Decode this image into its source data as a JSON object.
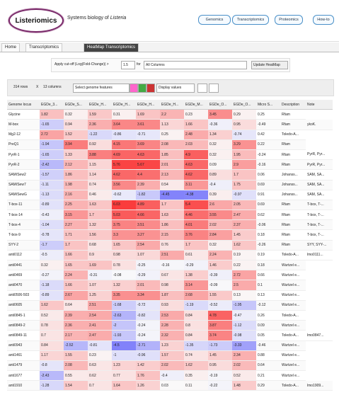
{
  "header": {
    "logo": "Listeriomics",
    "tagline": "Systems biology of",
    "tagline_em": "Listeria",
    "nav": [
      "Genomics",
      "Transcriptomics",
      "Proteomics",
      "How-to"
    ]
  },
  "tabs": [
    "Home",
    "Transcriptomics",
    "HeatMap Transcriptomics"
  ],
  "controls": {
    "cutoff_label": "Apply cut-off |Log(Fold-Change)| >",
    "cutoff": "1.5",
    "for": "for",
    "columns": "All Columns",
    "update": "Update HeatMap"
  },
  "toolbar": {
    "rows": "314 rows",
    "x": "X",
    "cols": "13 columns",
    "select": "Select genome features",
    "display": "Display values"
  },
  "table": {
    "headers": [
      "Genome locus",
      "EGDe_3...",
      "EGDe_S...",
      "EGDe_H...",
      "EGDe_H...",
      "EGDe_H...",
      "EGDe_H...",
      "EGDe_M...",
      "EGDe_O...",
      "EGDe_O...",
      "Micro S...",
      "Description",
      "Note"
    ],
    "rows": [
      [
        "Glycine",
        1.82,
        0.32,
        1.59,
        0.31,
        1.69,
        2.2,
        0.23,
        3.45,
        0.29,
        0.25,
        "Rfam"
      ],
      [
        "M-box",
        -1.65,
        0.94,
        2.36,
        3.64,
        3.61,
        1.13,
        1.66,
        -0.36,
        0.95,
        -0.49,
        "Rfam",
        "ykoK."
      ],
      [
        "Mg2-12",
        2.72,
        1.52,
        -1.22,
        -0.86,
        -0.71,
        0.25,
        2.48,
        1.34,
        -0.74,
        0.42,
        "Toledo-A..."
      ],
      [
        "PreQ1",
        -1.94,
        3.94,
        0.92,
        4.15,
        3.69,
        2.08,
        2.03,
        0.32,
        3.29,
        0.22,
        "Rfam"
      ],
      [
        "PyrR-1",
        -1.65,
        1.33,
        3.88,
        4.69,
        4.63,
        1.85,
        4.9,
        0.32,
        1.95,
        -0.24,
        "Rfam",
        "PyrR, Pyr..."
      ],
      [
        "PyrR-2",
        -2.42,
        2.12,
        1.15,
        5.76,
        5.67,
        2.01,
        4.63,
        0.09,
        2.9,
        -0.16,
        "Rfam",
        "PyrR, Pyr..."
      ],
      [
        "SAM/Sew2",
        -1.57,
        1.86,
        1.14,
        4.62,
        4.4,
        2.13,
        4.62,
        0.89,
        1.7,
        0.06,
        "Johanss...",
        "SAM, SA..."
      ],
      [
        "SAM/Sew7",
        -1.11,
        1.98,
        0.74,
        3.56,
        2.39,
        0.54,
        3.11,
        -0.4,
        1.75,
        0.69,
        "Johanss...",
        "SAM, SA..."
      ],
      [
        "SAM/SewG",
        -1.13,
        2.16,
        0.46,
        -0.62,
        -1.82,
        -4.45,
        -4.38,
        0.39,
        -0.97,
        0.91,
        "Johanss...",
        "SAM, SA..."
      ],
      [
        "T-box-11",
        -0.89,
        2.25,
        1.63,
        6.03,
        4.89,
        1.7,
        5.4,
        2.6,
        2.05,
        0.69,
        "Rfam",
        "T-box, T-..."
      ],
      [
        "T-box-14",
        -0.43,
        3.15,
        1.7,
        5.03,
        4.66,
        1.63,
        4.46,
        3.55,
        2.47,
        0.62,
        "Rfam",
        "T-box, T-..."
      ],
      [
        "T-box-4",
        -1.04,
        2.27,
        1.32,
        3.75,
        3.51,
        1.86,
        4.01,
        2.02,
        2.37,
        -0.06,
        "Rfam",
        "T-box, T-..."
      ],
      [
        "T-box-9",
        -0.78,
        1.71,
        1.56,
        3.3,
        3.27,
        2.15,
        3.76,
        2.84,
        1.45,
        0.18,
        "Rfam",
        "T-box, T-..."
      ],
      [
        "SYY-2",
        -1.7,
        1.7,
        0.68,
        1.65,
        2.54,
        0.76,
        1.7,
        0.32,
        1.62,
        -0.26,
        "Rfam",
        "SYY, SYY-..."
      ],
      [
        "anti0112",
        -0.5,
        1.66,
        0.9,
        0.98,
        1.07,
        2.51,
        0.61,
        2.24,
        0.19,
        0.19,
        "Toledo-A...",
        "lmo0111..."
      ],
      [
        "anti0441",
        0.32,
        1.65,
        1.69,
        0.78,
        -0.25,
        -0.16,
        -0.29,
        1.46,
        0.22,
        0.18,
        "Wurtzel e..."
      ],
      [
        "anti0469",
        -0.27,
        2.24,
        -0.31,
        -0.08,
        -0.29,
        0.67,
        1.38,
        -0.39,
        2.72,
        0.66,
        "Wurtzel e..."
      ],
      [
        "anti0470",
        -1.18,
        1.66,
        1.07,
        1.32,
        2.01,
        0.98,
        3.14,
        -0.09,
        2.5,
        0.1,
        "Wurtzel e..."
      ],
      [
        "anti0506-503",
        -0.89,
        2.67,
        1.25,
        3.35,
        3.34,
        1.87,
        2.68,
        1.55,
        0.13,
        0.13,
        "Wurtzel e..."
      ],
      [
        "anti0605",
        1.62,
        0.64,
        2.51,
        -1.68,
        -0.72,
        0.93,
        -1.19,
        -0.52,
        -1.95,
        -0.12,
        "Wurtzel e..."
      ],
      [
        "anti0845-1",
        0.52,
        2.39,
        2.54,
        -2.63,
        -0.82,
        2.53,
        0.84,
        4.78,
        -0.47,
        0.26,
        "Toledo-A..."
      ],
      [
        "anti0849-2",
        0.78,
        2.36,
        2.41,
        -2.0,
        -0.24,
        2.28,
        0.8,
        3.87,
        -1.12,
        0.09,
        "Wurtzel e..."
      ],
      [
        "anti0849-11",
        0.7,
        2.17,
        2.47,
        -1.93,
        -0.24,
        2.32,
        0.84,
        3.74,
        -0.98,
        0.05,
        "Toledo-A...",
        "lmo0847..."
      ],
      [
        "anti0943",
        0.84,
        -2.52,
        -0.81,
        -4.5,
        -2.71,
        1.23,
        -1.35,
        -1.73,
        -3.33,
        -0.46,
        "Wurtzel e..."
      ],
      [
        "anti1461",
        1.17,
        1.55,
        0.23,
        -1.0,
        -0.96,
        1.57,
        0.74,
        1.45,
        2.34,
        0.88,
        "Wurtzel e..."
      ],
      [
        "anti1479",
        -0.8,
        2.08,
        0.63,
        1.23,
        1.42,
        2.02,
        1.62,
        0.95,
        2.02,
        0.64,
        "Wurtzel e..."
      ],
      [
        "anti1677",
        -2.43,
        0.55,
        0.62,
        0.77,
        1.76,
        -0.4,
        0.35,
        -0.19,
        0.52,
        0.21,
        "Wurtzel e..."
      ],
      [
        "anti1910",
        -1.28,
        1.54,
        0.7,
        1.64,
        1.26,
        0.03,
        0.11,
        -0.22,
        1.48,
        0.29,
        "Toledo-A...",
        "lmo1909..."
      ]
    ]
  }
}
